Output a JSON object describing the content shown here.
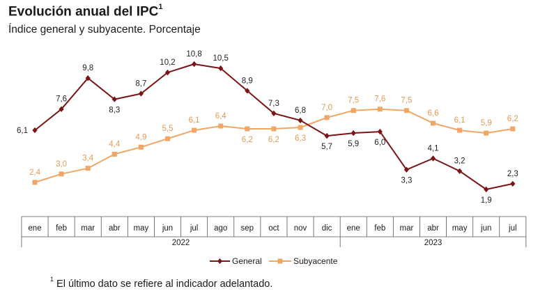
{
  "header": {
    "title": "Evolución anual del IPC",
    "title_sup": "1",
    "subtitle": "Índice general y subyacente. Porcentaje"
  },
  "footnote": {
    "sup": "1",
    "text": "El último dato se refiere al indicador adelantado."
  },
  "colors": {
    "general": "#7b1416",
    "subyacente": "#f0a664",
    "subyacente_label": "#e39a55"
  },
  "chart_data": {
    "type": "line",
    "categories": [
      "ene",
      "feb",
      "mar",
      "abr",
      "may",
      "jun",
      "jul",
      "ago",
      "sep",
      "oct",
      "nov",
      "dic",
      "ene",
      "feb",
      "mar",
      "abr",
      "may",
      "jun",
      "jul"
    ],
    "years": [
      {
        "label": "2022",
        "start": 0,
        "end": 11
      },
      {
        "label": "2023",
        "start": 12,
        "end": 18
      }
    ],
    "series": [
      {
        "name": "General",
        "marker": "diamond",
        "values": [
          6.1,
          7.6,
          9.8,
          8.3,
          8.7,
          10.2,
          10.8,
          10.5,
          8.9,
          7.3,
          6.8,
          5.7,
          5.9,
          6.0,
          3.3,
          4.1,
          3.2,
          1.9,
          2.3
        ],
        "labels": [
          "6,1",
          "7,6",
          "9,8",
          "8,3",
          "8,7",
          "10,2",
          "10,8",
          "10,5",
          "8,9",
          "7,3",
          "6,8",
          "5,7",
          "5,9",
          "6,0",
          "3,3",
          "4,1",
          "3,2",
          "1,9",
          "2,3"
        ]
      },
      {
        "name": "Subyacente",
        "marker": "square",
        "values": [
          2.4,
          3.0,
          3.4,
          4.4,
          4.9,
          5.5,
          6.1,
          6.4,
          6.2,
          6.2,
          6.3,
          7.0,
          7.5,
          7.6,
          7.5,
          6.6,
          6.1,
          5.9,
          6.2
        ],
        "labels": [
          "2,4",
          "3,0",
          "3,4",
          "4,4",
          "4,9",
          "5,5",
          "6,1",
          "6,4",
          "6,2",
          "6,2",
          "6,3",
          "7,0",
          "7,5",
          "7,6",
          "7,5",
          "6,6",
          "6,1",
          "5,9",
          "6,2"
        ]
      }
    ],
    "legend": "bottom-center",
    "grid": false
  }
}
